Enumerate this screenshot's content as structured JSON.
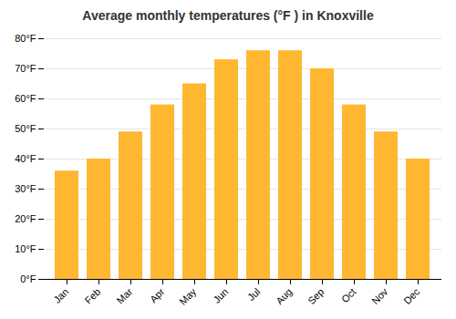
{
  "chart_data": {
    "type": "bar",
    "title": "Average monthly temperatures (°F ) in Knoxville",
    "categories": [
      "Jan",
      "Feb",
      "Mar",
      "Apr",
      "May",
      "Jun",
      "Jul",
      "Aug",
      "Sep",
      "Oct",
      "Nov",
      "Dec"
    ],
    "values": [
      36,
      40,
      49,
      58,
      65,
      73,
      76,
      76,
      70,
      58,
      49,
      40
    ],
    "color": "#FFB732",
    "ylim": [
      0,
      80
    ],
    "yticks": [
      {
        "value": 0,
        "label": "0°F"
      },
      {
        "value": 10,
        "label": "10°F"
      },
      {
        "value": 20,
        "label": "20°F"
      },
      {
        "value": 30,
        "label": "30°F"
      },
      {
        "value": 40,
        "label": "40°F"
      },
      {
        "value": 50,
        "label": "50°F"
      },
      {
        "value": 60,
        "label": "60°F"
      },
      {
        "value": 70,
        "label": "70°F"
      },
      {
        "value": 80,
        "label": "80°F"
      }
    ],
    "grid": true
  }
}
